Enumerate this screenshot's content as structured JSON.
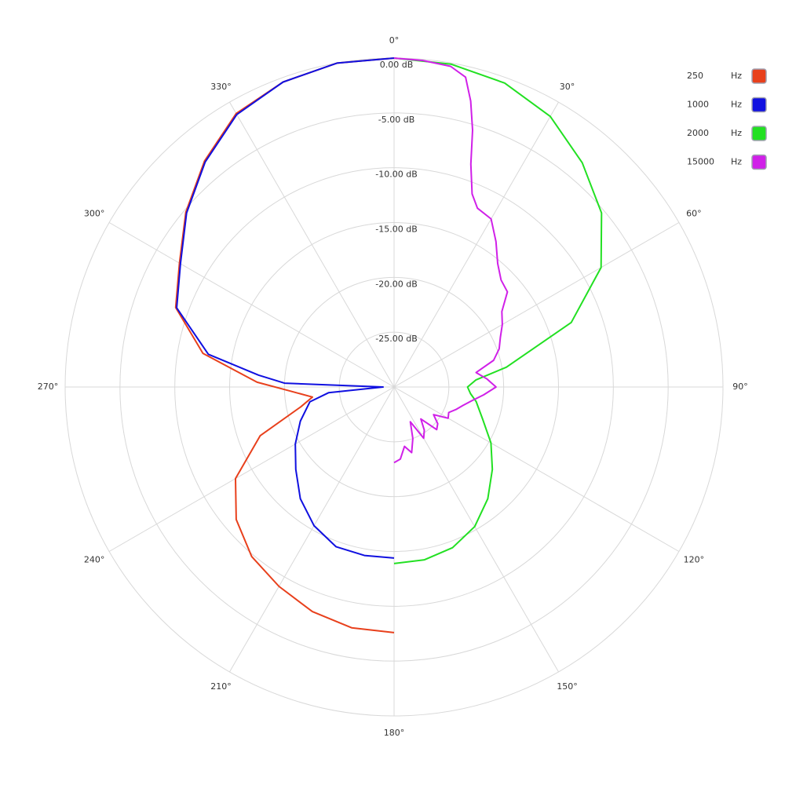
{
  "chart_data": {
    "type": "polar",
    "direction": "clockwise",
    "zero_at": "top",
    "rlim": [
      -30,
      0
    ],
    "rticks": [
      {
        "value": 0,
        "label": "0.00 dB"
      },
      {
        "value": -5,
        "label": "-5.00 dB"
      },
      {
        "value": -10,
        "label": "-10.00 dB"
      },
      {
        "value": -15,
        "label": "-15.00 dB"
      },
      {
        "value": -20,
        "label": "-20.00 dB"
      },
      {
        "value": -25,
        "label": "-25.00 dB"
      }
    ],
    "thetaticks": [
      {
        "value": 0,
        "label": "0°"
      },
      {
        "value": 30,
        "label": "30°"
      },
      {
        "value": 60,
        "label": "60°"
      },
      {
        "value": 90,
        "label": "90°"
      },
      {
        "value": 120,
        "label": "120°"
      },
      {
        "value": 150,
        "label": "150°"
      },
      {
        "value": 180,
        "label": "180°"
      },
      {
        "value": 210,
        "label": "210°"
      },
      {
        "value": 240,
        "label": "240°"
      },
      {
        "value": 270,
        "label": "270°"
      },
      {
        "value": 300,
        "label": "300°"
      },
      {
        "value": 330,
        "label": "330°"
      }
    ],
    "grid": true,
    "legend_position": "top-right",
    "legend_unit": "Hz",
    "series": [
      {
        "name": "250",
        "color": "#e8401c",
        "theta": [
          180,
          190,
          200,
          210,
          220,
          230,
          240,
          250,
          258,
          263,
          268,
          272,
          280,
          290,
          300,
          310,
          320,
          330,
          340,
          350,
          360
        ],
        "values": [
          -7.6,
          -7.7,
          -8.2,
          -9,
          -9.8,
          -11.2,
          -13.3,
          -17,
          -21.3,
          -22.5,
          -20.4,
          -17.5,
          -12.3,
          -8.8,
          -7.4,
          -5.2,
          -3.1,
          -1.2,
          -0.4,
          0,
          0
        ]
      },
      {
        "name": "1000",
        "color": "#1010e0",
        "theta": [
          180,
          190,
          200,
          210,
          220,
          230,
          240,
          250,
          260,
          265,
          270,
          272,
          275,
          280,
          290,
          300,
          310,
          320,
          330,
          340,
          350,
          360
        ],
        "values": [
          -14.4,
          -14.4,
          -14.5,
          -15.4,
          -16.7,
          -18.3,
          -19.6,
          -20.9,
          -22.2,
          -24,
          -29,
          -20,
          -17.6,
          -12.8,
          -8.9,
          -7.5,
          -5.3,
          -3.2,
          -1.3,
          -0.4,
          0,
          0
        ]
      },
      {
        "name": "2000",
        "color": "#22e022",
        "theta": [
          0,
          10,
          20,
          30,
          40,
          50,
          60,
          70,
          80,
          85,
          90,
          95,
          100,
          110,
          120,
          130,
          140,
          150,
          160,
          170,
          180
        ],
        "values": [
          0,
          -0.1,
          -0.5,
          -1.5,
          -3.3,
          -5.3,
          -8.2,
          -12.8,
          -19.6,
          -22.5,
          -23.3,
          -23,
          -22.4,
          -21.4,
          -19.8,
          -18.3,
          -16.7,
          -15.3,
          -14.4,
          -14,
          -13.9
        ]
      },
      {
        "name": "15000",
        "color": "#d020e8",
        "theta": [
          0,
          5,
          10,
          13,
          15,
          17,
          19,
          22,
          25,
          30,
          35,
          40,
          45,
          50,
          55,
          60,
          65,
          70,
          75,
          80,
          85,
          90,
          95,
          100,
          105,
          110,
          115,
          120,
          125,
          130,
          135,
          140,
          145,
          150,
          155,
          160,
          165,
          170,
          175,
          180
        ],
        "values": [
          0,
          -0.1,
          -0.3,
          -1,
          -3,
          -5.5,
          -8.5,
          -11,
          -12,
          -12.3,
          -13.8,
          -15.3,
          -16.2,
          -16.5,
          -18,
          -18.6,
          -19.3,
          -19.8,
          -20.6,
          -22.4,
          -21.5,
          -20.7,
          -21.8,
          -22.8,
          -23.5,
          -24,
          -24.5,
          -24.3,
          -25.6,
          -24.8,
          -24.5,
          -26.2,
          -25.2,
          -24.6,
          -26.5,
          -25,
          -23.8,
          -24.5,
          -23.4,
          -23.1
        ]
      }
    ]
  }
}
